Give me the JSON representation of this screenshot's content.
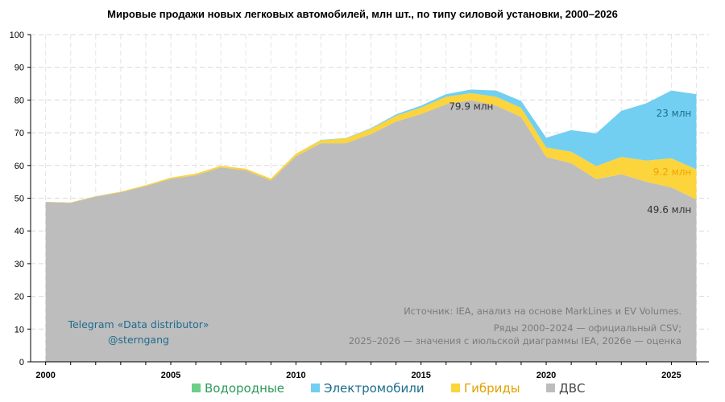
{
  "chart_data": {
    "type": "area",
    "title": "Мировые продажи новых легковых автомобилей, млн шт., по типу силовой установки, 2000–2026",
    "x": [
      2000,
      2001,
      2002,
      2003,
      2004,
      2005,
      2006,
      2007,
      2008,
      2009,
      2010,
      2011,
      2012,
      2013,
      2014,
      2015,
      2016,
      2017,
      2018,
      2019,
      2020,
      2021,
      2022,
      2023,
      2024,
      2025,
      2026
    ],
    "ylim": [
      0,
      100
    ],
    "yticks": [
      0,
      10,
      20,
      30,
      40,
      50,
      60,
      70,
      80,
      90,
      100
    ],
    "xticks": [
      2000,
      2005,
      2010,
      2015,
      2020,
      2025
    ],
    "grid": true,
    "stacked": true,
    "series": [
      {
        "name": "ДВС",
        "color": "#bdbdbd",
        "values": [
          48.8,
          48.6,
          50.5,
          51.8,
          53.7,
          55.9,
          57.0,
          59.4,
          58.5,
          55.4,
          62.8,
          66.8,
          66.8,
          69.6,
          73.4,
          75.7,
          78.7,
          79.9,
          78.3,
          74.8,
          62.6,
          60.7,
          55.8,
          57.3,
          55.0,
          53.3,
          49.6
        ]
      },
      {
        "name": "Гибриды",
        "color": "#fcd43c",
        "values": [
          0.1,
          0.1,
          0.1,
          0.2,
          0.3,
          0.4,
          0.5,
          0.5,
          0.5,
          0.6,
          0.8,
          0.9,
          1.5,
          1.6,
          1.8,
          2.0,
          2.3,
          2.2,
          2.7,
          2.8,
          2.9,
          3.5,
          4.0,
          5.3,
          6.5,
          8.9,
          9.2
        ]
      },
      {
        "name": "Электромобили",
        "color": "#72cff1",
        "values": [
          0,
          0,
          0,
          0,
          0,
          0,
          0,
          0,
          0,
          0,
          0,
          0.1,
          0.1,
          0.2,
          0.4,
          0.6,
          0.8,
          1.1,
          1.9,
          2.1,
          3.0,
          6.6,
          10.0,
          14.1,
          17.5,
          20.7,
          23.0
        ]
      },
      {
        "name": "Водородные",
        "color": "#6bcf8a",
        "values": [
          0,
          0,
          0,
          0,
          0,
          0,
          0,
          0,
          0,
          0,
          0,
          0,
          0,
          0,
          0,
          0,
          0,
          0,
          0,
          0,
          0,
          0,
          0,
          0,
          0,
          0,
          0
        ]
      }
    ],
    "legend_placement": "bottom",
    "legend_order": [
      "Водородные",
      "Электромобили",
      "Гибриды",
      "ДВС"
    ],
    "legend_colors": {
      "Водородные": "#2e9a5a",
      "Электромобили": "#1b6d8c",
      "Гибриды": "#e3a000",
      "ДВС": "#444444"
    },
    "annotations": [
      {
        "text": "79.9 млн",
        "x": 2017,
        "y": 77.0,
        "color": "#333333",
        "anchor": "middle"
      },
      {
        "text": "23 млн",
        "x": 2025.8,
        "y": 75.0,
        "color": "#1b6d8c",
        "anchor": "end"
      },
      {
        "text": "9.2 млн",
        "x": 2025.8,
        "y": 57.0,
        "color": "#f0a500",
        "anchor": "end"
      },
      {
        "text": "49.6 млн",
        "x": 2025.8,
        "y": 45.5,
        "color": "#333333",
        "anchor": "end"
      }
    ]
  },
  "source_note": [
    "Источник: IEA, анализ на основе MarkLines и EV Volumes.",
    "Ряды 2000–2024 — официальный CSV;",
    "2025–2026 — значения с июльской диаграммы IEA, 2026e — оценка"
  ],
  "watermark": {
    "line1": "Telegram «Data distributor»",
    "line2": "@sterngang"
  }
}
